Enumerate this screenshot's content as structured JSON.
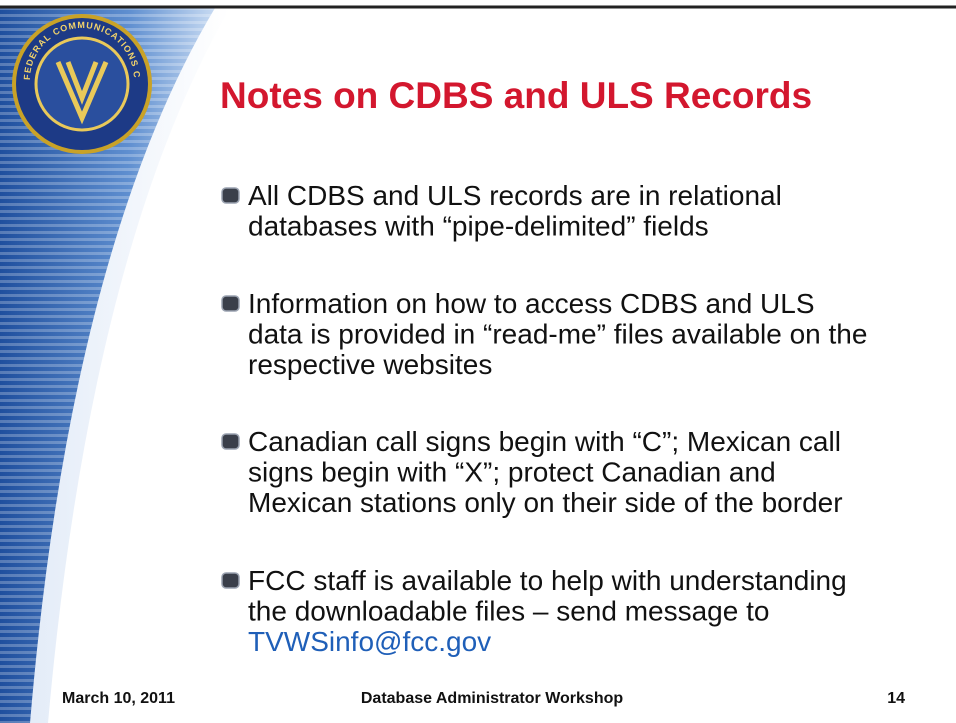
{
  "title": "Notes on CDBS and ULS Records",
  "seal_text": "FEDERAL COMMUNICATIONS COMMISSION",
  "bullets": [
    {
      "lines": [
        "All CDBS and ULS records are in relational",
        "databases with “pipe-delimited” fields"
      ]
    },
    {
      "lines": [
        "Information on how to access CDBS and ULS",
        "data is provided in “read-me” files available on the",
        "respective websites"
      ]
    },
    {
      "lines": [
        "Canadian call signs begin with “C”; Mexican call",
        "signs begin with “X”; protect Canadian and",
        "Mexican stations only on their side of the border"
      ]
    },
    {
      "lines": [
        "FCC staff is available to help with understanding",
        "the downloadable files – send message to"
      ],
      "link": "TVWSinfo@fcc.gov"
    }
  ],
  "footer": {
    "date": "March 10, 2011",
    "event": "Database Administrator Workshop",
    "page": 14
  }
}
